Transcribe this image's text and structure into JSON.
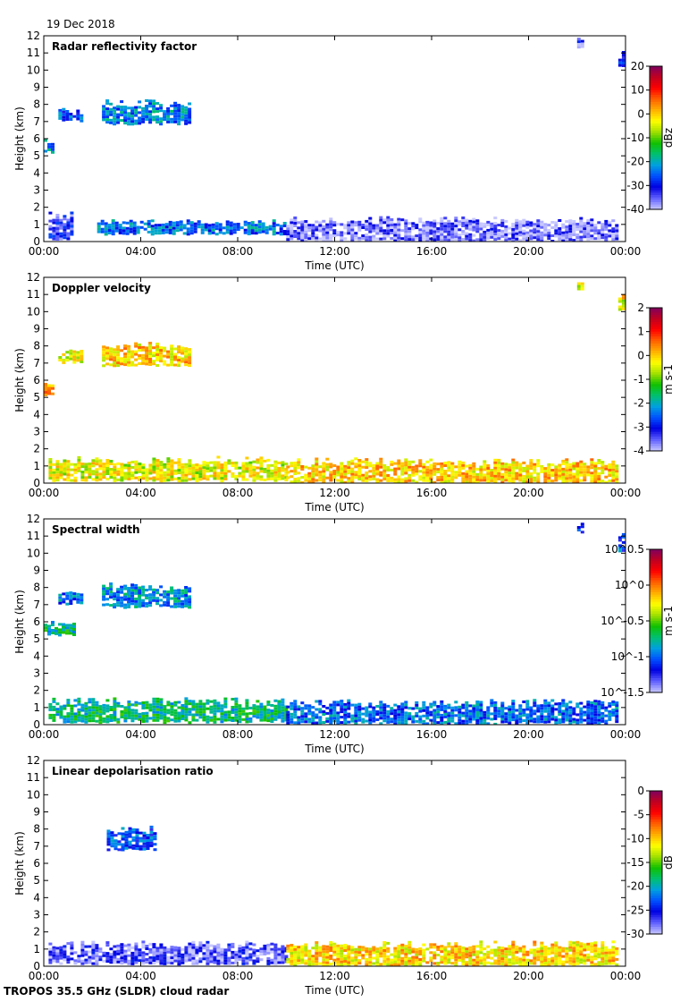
{
  "date": "19 Dec 2018",
  "footer": "TROPOS 35.5 GHz (SLDR) cloud radar",
  "colors": {
    "axis": "#000000",
    "background": "#ffffff",
    "colormap": [
      "#c8c8ff",
      "#6060ff",
      "#0000e0",
      "#0050ff",
      "#00a0e0",
      "#00c070",
      "#10c000",
      "#a0e000",
      "#ffff00",
      "#ffb000",
      "#ff6000",
      "#ff0000",
      "#c00020",
      "#800060"
    ]
  },
  "chart_data": [
    {
      "type": "heatmap",
      "title": "Radar reflectivity factor",
      "xlabel": "Time (UTC)",
      "ylabel": "Height (km)",
      "xticks": [
        "00:00",
        "04:00",
        "08:00",
        "12:00",
        "16:00",
        "20:00",
        "00:00"
      ],
      "yticks": [
        "0",
        "1",
        "2",
        "3",
        "4",
        "5",
        "6",
        "7",
        "8",
        "9",
        "10",
        "11",
        "12"
      ],
      "xlim_hours": [
        0,
        24
      ],
      "ylim_km": [
        0,
        12
      ],
      "colorbar": {
        "label": "dBz",
        "ticks": [
          "20",
          "10",
          "0",
          "-10",
          "-20",
          "-30",
          "-40"
        ],
        "range": [
          -40,
          20
        ],
        "scale": "linear"
      },
      "cloud_regions": [
        {
          "t0": 0.0,
          "t1": 0.3,
          "h0": 5.2,
          "h1": 6.0,
          "level": 0.27
        },
        {
          "t0": 0.6,
          "t1": 1.6,
          "h0": 7.1,
          "h1": 7.8,
          "level": 0.22
        },
        {
          "t0": 2.4,
          "t1": 6.0,
          "h0": 6.9,
          "h1": 8.3,
          "level": 0.28
        },
        {
          "t0": 0.2,
          "t1": 1.2,
          "h0": 0.2,
          "h1": 1.8,
          "level": 0.12
        },
        {
          "t0": 2.2,
          "t1": 10.0,
          "h0": 0.5,
          "h1": 1.3,
          "level": 0.26
        },
        {
          "t0": 10.0,
          "t1": 23.6,
          "h0": 0.1,
          "h1": 1.5,
          "level": 0.06
        },
        {
          "t0": 22.0,
          "t1": 22.2,
          "h0": 11.3,
          "h1": 11.9,
          "level": 0.1
        },
        {
          "t0": 23.7,
          "t1": 24.0,
          "h0": 10.2,
          "h1": 11.2,
          "level": 0.18
        }
      ]
    },
    {
      "type": "heatmap",
      "title": "Doppler velocity",
      "xlabel": "Time (UTC)",
      "ylabel": "Height (km)",
      "xticks": [
        "00:00",
        "04:00",
        "08:00",
        "12:00",
        "16:00",
        "20:00",
        "00:00"
      ],
      "yticks": [
        "0",
        "1",
        "2",
        "3",
        "4",
        "5",
        "6",
        "7",
        "8",
        "9",
        "10",
        "11",
        "12"
      ],
      "xlim_hours": [
        0,
        24
      ],
      "ylim_km": [
        0,
        12
      ],
      "colorbar": {
        "label": "m s-1",
        "ticks": [
          "2",
          "1",
          "0",
          "-1",
          "-2",
          "-3",
          "-4"
        ],
        "range": [
          -4,
          2
        ],
        "scale": "linear"
      },
      "cloud_regions": [
        {
          "t0": 0.0,
          "t1": 0.3,
          "h0": 5.2,
          "h1": 6.0,
          "level": 0.7
        },
        {
          "t0": 0.6,
          "t1": 1.6,
          "h0": 7.1,
          "h1": 7.8,
          "level": 0.62
        },
        {
          "t0": 2.4,
          "t1": 6.0,
          "h0": 6.9,
          "h1": 8.3,
          "level": 0.66
        },
        {
          "t0": 0.2,
          "t1": 10.0,
          "h0": 0.2,
          "h1": 1.6,
          "level": 0.6
        },
        {
          "t0": 10.0,
          "t1": 23.6,
          "h0": 0.1,
          "h1": 1.5,
          "level": 0.66
        },
        {
          "t0": 22.0,
          "t1": 22.2,
          "h0": 11.3,
          "h1": 11.9,
          "level": 0.62
        },
        {
          "t0": 23.7,
          "t1": 24.0,
          "h0": 10.2,
          "h1": 11.2,
          "level": 0.62
        }
      ]
    },
    {
      "type": "heatmap",
      "title": "Spectral width",
      "xlabel": "Time (UTC)",
      "ylabel": "Height (km)",
      "xticks": [
        "00:00",
        "04:00",
        "08:00",
        "12:00",
        "16:00",
        "20:00",
        "00:00"
      ],
      "yticks": [
        "0",
        "1",
        "2",
        "3",
        "4",
        "5",
        "6",
        "7",
        "8",
        "9",
        "10",
        "11",
        "12"
      ],
      "xlim_hours": [
        0,
        24
      ],
      "ylim_km": [
        0,
        12
      ],
      "colorbar": {
        "label": "m s-1",
        "ticks": [
          "10^0.5",
          "10^0",
          "10^-0.5",
          "10^-1",
          "10^-1.5"
        ],
        "range": [
          -1.5,
          0.5
        ],
        "scale": "log10"
      },
      "cloud_regions": [
        {
          "t0": 0.0,
          "t1": 1.3,
          "h0": 5.3,
          "h1": 6.1,
          "level": 0.38
        },
        {
          "t0": 0.6,
          "t1": 1.6,
          "h0": 7.1,
          "h1": 7.8,
          "level": 0.26
        },
        {
          "t0": 2.4,
          "t1": 6.0,
          "h0": 6.9,
          "h1": 8.3,
          "level": 0.3
        },
        {
          "t0": 0.2,
          "t1": 10.0,
          "h0": 0.2,
          "h1": 1.6,
          "level": 0.38
        },
        {
          "t0": 10.0,
          "t1": 23.6,
          "h0": 0.1,
          "h1": 1.5,
          "level": 0.25
        },
        {
          "t0": 22.0,
          "t1": 22.2,
          "h0": 11.3,
          "h1": 11.9,
          "level": 0.22
        },
        {
          "t0": 23.7,
          "t1": 24.0,
          "h0": 10.2,
          "h1": 11.2,
          "level": 0.22
        }
      ]
    },
    {
      "type": "heatmap",
      "title": "Linear depolarisation ratio",
      "xlabel": "Time (UTC)",
      "ylabel": "Height (km)",
      "xticks": [
        "00:00",
        "04:00",
        "08:00",
        "12:00",
        "16:00",
        "20:00",
        "00:00"
      ],
      "yticks": [
        "0",
        "1",
        "2",
        "3",
        "4",
        "5",
        "6",
        "7",
        "8",
        "9",
        "10",
        "11",
        "12"
      ],
      "xlim_hours": [
        0,
        24
      ],
      "ylim_km": [
        0,
        12
      ],
      "colorbar": {
        "label": "dB",
        "ticks": [
          "0",
          "-5",
          "-10",
          "-15",
          "-20",
          "-25",
          "-30"
        ],
        "range": [
          -30,
          0
        ],
        "scale": "linear"
      },
      "cloud_regions": [
        {
          "t0": 2.6,
          "t1": 4.6,
          "h0": 6.8,
          "h1": 8.2,
          "level": 0.22
        },
        {
          "t0": 0.2,
          "t1": 10.0,
          "h0": 0.2,
          "h1": 1.5,
          "level": 0.08
        },
        {
          "t0": 10.0,
          "t1": 23.6,
          "h0": 0.1,
          "h1": 1.5,
          "level": 0.65
        }
      ]
    }
  ]
}
